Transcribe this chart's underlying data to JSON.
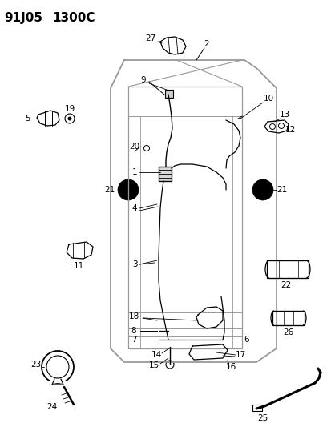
{
  "title_line1": "91J05",
  "title_line2": "1300C",
  "background_color": "#ffffff",
  "line_color": "#000000",
  "diagram_color": "#999999",
  "title_fontsize": 11,
  "label_fontsize": 7.5,
  "figsize": [
    4.14,
    5.33
  ],
  "dpi": 100
}
